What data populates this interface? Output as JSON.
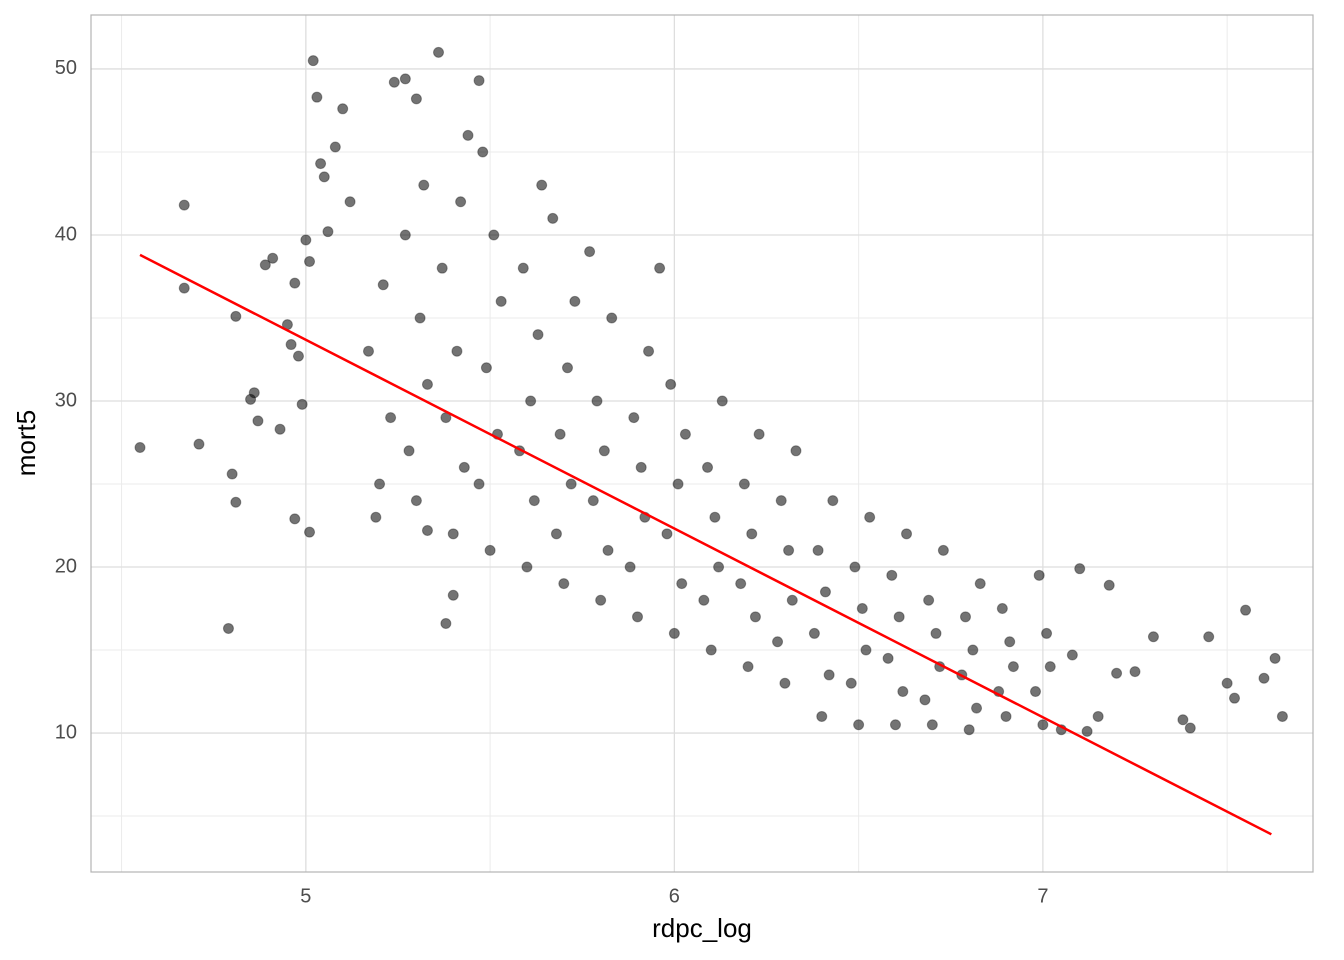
{
  "chart_data": {
    "type": "scatter",
    "x_label": "rdpc_log",
    "y_label": "mort5",
    "xlim": [
      4.417,
      7.733
    ],
    "ylim": [
      1.63,
      53.25
    ],
    "xticks": [
      5,
      6,
      7
    ],
    "yticks": [
      10,
      20,
      30,
      40,
      50
    ],
    "xminor": [
      4.5,
      5.5,
      6.5,
      7.5
    ],
    "yminor": [
      5,
      15,
      25,
      35,
      45
    ],
    "grid": true,
    "series": [
      {
        "color": "#000000",
        "x": [
          4.55,
          4.67,
          4.67,
          4.71,
          4.79,
          4.8,
          4.81,
          4.81,
          4.85,
          4.86,
          4.87,
          4.89,
          4.91,
          4.93,
          4.95,
          4.96,
          4.97,
          4.98,
          5.0,
          5.01,
          4.99,
          5.02,
          5.03,
          5.04,
          5.05,
          5.06,
          5.08,
          5.1,
          5.12,
          5.36,
          5.38,
          5.33,
          5.4,
          5.27,
          5.24,
          5.3,
          5.47,
          4.97,
          5.01,
          7.1,
          7.18,
          7.3,
          7.4,
          7.45,
          7.55,
          7.6,
          7.63,
          7.65,
          7.5,
          7.52,
          7.38,
          7.25,
          7.2,
          7.15,
          7.12,
          7.08,
          7.05,
          5.2,
          5.23,
          5.17,
          5.21,
          5.19,
          5.3,
          5.28,
          5.33,
          5.31,
          5.27,
          5.32,
          5.4,
          5.43,
          5.38,
          5.41,
          5.37,
          5.42,
          5.44,
          5.5,
          5.47,
          5.52,
          5.49,
          5.53,
          5.51,
          5.48,
          5.6,
          5.62,
          5.58,
          5.61,
          5.63,
          5.59,
          5.64,
          5.7,
          5.68,
          5.72,
          5.69,
          5.71,
          5.73,
          5.67,
          5.8,
          5.82,
          5.78,
          5.81,
          5.79,
          5.83,
          5.77,
          5.9,
          5.88,
          5.92,
          5.91,
          5.89,
          5.93,
          5.96,
          6.0,
          6.02,
          5.98,
          6.01,
          6.03,
          5.99,
          6.1,
          6.08,
          6.12,
          6.11,
          6.09,
          6.13,
          6.2,
          6.22,
          6.18,
          6.21,
          6.19,
          6.23,
          6.3,
          6.28,
          6.32,
          6.31,
          6.29,
          6.33,
          6.4,
          6.42,
          6.38,
          6.41,
          6.39,
          6.43,
          6.5,
          6.48,
          6.52,
          6.51,
          6.49,
          6.53,
          6.6,
          6.62,
          6.58,
          6.61,
          6.59,
          6.63,
          6.7,
          6.68,
          6.72,
          6.71,
          6.69,
          6.73,
          6.8,
          6.82,
          6.78,
          6.81,
          6.79,
          6.83,
          6.9,
          6.88,
          6.92,
          6.91,
          6.89,
          7.0,
          6.98,
          7.02,
          7.01,
          6.99
        ],
        "y": [
          27.2,
          41.8,
          36.8,
          27.4,
          16.3,
          25.6,
          35.1,
          23.9,
          30.1,
          30.5,
          28.8,
          38.2,
          38.6,
          28.3,
          34.6,
          33.4,
          37.1,
          32.7,
          39.7,
          38.4,
          29.8,
          50.5,
          48.3,
          44.3,
          43.5,
          40.2,
          45.3,
          47.6,
          42.0,
          51.0,
          16.6,
          22.2,
          18.3,
          49.4,
          49.2,
          48.2,
          49.3,
          22.9,
          22.1,
          19.9,
          18.9,
          15.8,
          10.3,
          15.8,
          17.4,
          13.3,
          14.5,
          11.0,
          13.0,
          12.1,
          10.8,
          13.7,
          13.6,
          11.0,
          10.1,
          14.7,
          10.2,
          25,
          29,
          33,
          37,
          23,
          24,
          27,
          31,
          35,
          40,
          43,
          22,
          26,
          29,
          33,
          38,
          42,
          46,
          21,
          25,
          28,
          32,
          36,
          40,
          45,
          20,
          24,
          27,
          30,
          34,
          38,
          43,
          19,
          22,
          25,
          28,
          32,
          36,
          41,
          18,
          21,
          24,
          27,
          30,
          35,
          39,
          17,
          20,
          23,
          26,
          29,
          33,
          38,
          16,
          19,
          22,
          25,
          28,
          31,
          15,
          18,
          20,
          23,
          26,
          30,
          14,
          17,
          19,
          22,
          25,
          28,
          13,
          15.5,
          18,
          21,
          24,
          27,
          11,
          13.5,
          16,
          18.5,
          21,
          24,
          10.5,
          13,
          15,
          17.5,
          20,
          23,
          10.5,
          12.5,
          14.5,
          17,
          19.5,
          22,
          10.5,
          12,
          14,
          16,
          18,
          21,
          10.2,
          11.5,
          13.5,
          15,
          17,
          19,
          11,
          12.5,
          14,
          15.5,
          17.5,
          10.5,
          12.5,
          14,
          16,
          19.5
        ]
      }
    ],
    "line": {
      "color": "#ff0000",
      "x": [
        4.55,
        7.62
      ],
      "y": [
        38.8,
        3.9
      ]
    }
  }
}
